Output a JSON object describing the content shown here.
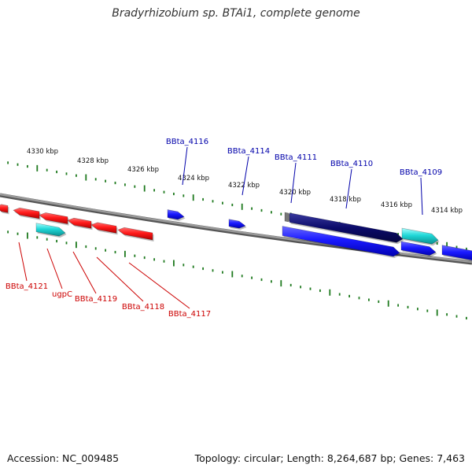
{
  "title": "Bradyrhizobium sp. BTAi1, complete genome",
  "footer": {
    "accession": "Accession: NC_009485",
    "summary": "Topology: circular; Length: 8,264,687 bp; Genes: 7,463"
  },
  "colors": {
    "forward_gene": "#0a0aff",
    "reverse_gene": "#ff1010",
    "cyan_feature": "#1fd0d0",
    "dark_feature": "#0b0b6a",
    "backbone": "#808080",
    "ticks": "#1f7a1f",
    "forward_label": "#0000aa",
    "reverse_label": "#cc0000"
  },
  "kbp_labels": [
    "4330 kbp",
    "4328 kbp",
    "4326 kbp",
    "4324 kbp",
    "4322 kbp",
    "4320 kbp",
    "4318 kbp",
    "4316 kbp",
    "4314 kbp"
  ],
  "forward_gene_labels": [
    "BBta_4116",
    "BBta_4114",
    "BBta_4111",
    "BBta_4110",
    "BBta_4109"
  ],
  "reverse_gene_labels": [
    "BBta_4121",
    "ugpC",
    "BBta_4119",
    "BBta_4118",
    "BBta_4117"
  ]
}
